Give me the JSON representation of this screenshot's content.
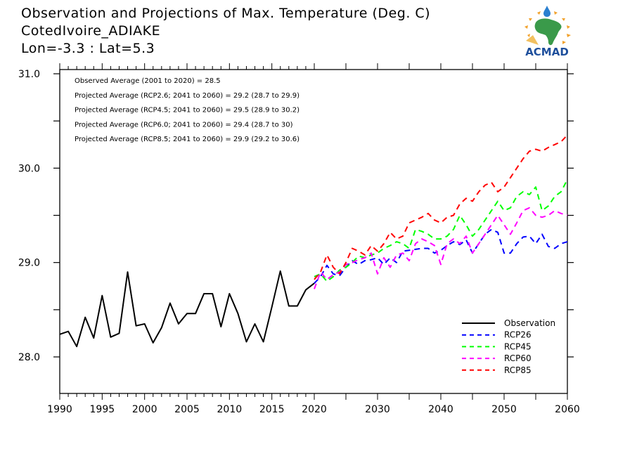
{
  "header": {
    "title": "Observation and Projections of Max. Temperature (Deg. C)",
    "station": "CotedIvoire_ADIAKE",
    "coords": "Lon=-3.3 : Lat=5.3"
  },
  "logo": {
    "text": "ACMAD",
    "colors": {
      "africa": "#3a9a4a",
      "text": "#1e4f9c",
      "sun": "#f2a22c",
      "drop": "#2a7fd0"
    }
  },
  "chart_data": {
    "type": "line",
    "title": "Observation and Projections of Max. Temperature (Deg. C)",
    "xlabel": "",
    "ylabel": "",
    "ylim": [
      27.6,
      31.05
    ],
    "xlim": [
      1990,
      2060
    ],
    "x_scale_note": "piecewise: 1990-2020 and 2020-2060 segments drawn at different widths",
    "grid": false,
    "yticks": [
      28.0,
      29.0,
      30.0,
      31.0
    ],
    "ytick_labels": [
      "28.0",
      "29.0",
      "30.0",
      "31.0"
    ],
    "xticks": [
      1990,
      1995,
      2000,
      2005,
      2010,
      2015,
      2020,
      2030,
      2040,
      2050,
      2060
    ],
    "xtick_labels": [
      "1990",
      "1995",
      "2000",
      "2005",
      "2010",
      "2015",
      "2020",
      "2030",
      "2040",
      "2050",
      "2060"
    ],
    "legend_position": "bottom-right",
    "annotations": [
      "Observed Average (2001 to 2020) = 28.5",
      "Projected Average (RCP2.6; 2041 to 2060) = 29.2 (28.7 to 29.9)",
      "Projected Average (RCP4.5; 2041 to 2060) = 29.5 (28.9 to 30.2)",
      "Projected Average (RCP6.0; 2041 to 2060) = 29.4 (28.7 to 30)",
      "Projected Average (RCP8.5; 2041 to 2060) = 29.9 (29.2 to 30.6)"
    ],
    "series": [
      {
        "name": "Observation",
        "color": "#000000",
        "dash": false,
        "x": [
          1990,
          1991,
          1992,
          1993,
          1994,
          1995,
          1996,
          1997,
          1998,
          1999,
          2000,
          2001,
          2002,
          2003,
          2004,
          2005,
          2006,
          2007,
          2008,
          2009,
          2010,
          2011,
          2012,
          2013,
          2014,
          2015,
          2016,
          2017,
          2018,
          2019,
          2020
        ],
        "values": [
          28.24,
          28.27,
          28.11,
          28.42,
          28.2,
          28.65,
          28.21,
          28.25,
          28.9,
          28.33,
          28.35,
          28.15,
          28.31,
          28.57,
          28.35,
          28.46,
          28.46,
          28.67,
          28.67,
          28.32,
          28.67,
          28.46,
          28.16,
          28.35,
          28.16,
          28.53,
          28.91,
          28.54,
          28.54,
          28.71,
          28.78
        ]
      },
      {
        "name": "RCP26",
        "color": "#0000ff",
        "dash": true,
        "x": [
          2020,
          2021,
          2022,
          2023,
          2024,
          2025,
          2026,
          2027,
          2028,
          2029,
          2030,
          2031,
          2032,
          2033,
          2034,
          2035,
          2036,
          2037,
          2038,
          2039,
          2040,
          2041,
          2042,
          2043,
          2044,
          2045,
          2046,
          2047,
          2048,
          2049,
          2050,
          2051,
          2052,
          2053,
          2054,
          2055,
          2056,
          2057,
          2058,
          2059,
          2060
        ],
        "values": [
          28.78,
          28.85,
          28.97,
          28.88,
          28.86,
          28.95,
          29.02,
          28.98,
          29.02,
          29.03,
          29.05,
          28.98,
          29.05,
          29.0,
          29.12,
          29.13,
          29.14,
          29.15,
          29.15,
          29.1,
          29.13,
          29.18,
          29.22,
          29.19,
          29.24,
          29.1,
          29.2,
          29.3,
          29.35,
          29.32,
          29.1,
          29.1,
          29.2,
          29.27,
          29.28,
          29.2,
          29.3,
          29.17,
          29.15,
          29.2,
          29.22
        ]
      },
      {
        "name": "RCP45",
        "color": "#00ff00",
        "dash": true,
        "x": [
          2020,
          2021,
          2022,
          2023,
          2024,
          2025,
          2026,
          2027,
          2028,
          2029,
          2030,
          2031,
          2032,
          2033,
          2034,
          2035,
          2036,
          2037,
          2038,
          2039,
          2040,
          2041,
          2042,
          2043,
          2044,
          2045,
          2046,
          2047,
          2048,
          2049,
          2050,
          2051,
          2052,
          2053,
          2054,
          2055,
          2056,
          2057,
          2058,
          2059,
          2060
        ],
        "values": [
          28.85,
          28.88,
          28.8,
          28.85,
          28.92,
          28.95,
          29.0,
          29.07,
          29.05,
          29.08,
          29.1,
          29.15,
          29.18,
          29.22,
          29.2,
          29.15,
          29.35,
          29.33,
          29.3,
          29.25,
          29.25,
          29.28,
          29.35,
          29.5,
          29.4,
          29.28,
          29.35,
          29.45,
          29.55,
          29.65,
          29.55,
          29.58,
          29.7,
          29.75,
          29.72,
          29.8,
          29.55,
          29.6,
          29.7,
          29.75,
          29.88
        ]
      },
      {
        "name": "RCP60",
        "color": "#ff00ff",
        "dash": true,
        "x": [
          2020,
          2021,
          2022,
          2023,
          2024,
          2025,
          2026,
          2027,
          2028,
          2029,
          2030,
          2031,
          2032,
          2033,
          2034,
          2035,
          2036,
          2037,
          2038,
          2039,
          2040,
          2041,
          2042,
          2043,
          2044,
          2045,
          2046,
          2047,
          2048,
          2049,
          2050,
          2051,
          2052,
          2053,
          2054,
          2055,
          2056,
          2057,
          2058,
          2059,
          2060
        ],
        "values": [
          28.72,
          28.9,
          28.82,
          28.87,
          28.9,
          28.98,
          29.0,
          29.03,
          29.05,
          29.1,
          28.88,
          29.05,
          28.95,
          29.08,
          29.1,
          29.02,
          29.2,
          29.25,
          29.22,
          29.18,
          28.98,
          29.2,
          29.25,
          29.2,
          29.28,
          29.1,
          29.2,
          29.3,
          29.4,
          29.5,
          29.4,
          29.3,
          29.42,
          29.55,
          29.58,
          29.5,
          29.48,
          29.5,
          29.55,
          29.52,
          29.5
        ]
      },
      {
        "name": "RCP85",
        "color": "#ff0000",
        "dash": true,
        "x": [
          2020,
          2021,
          2022,
          2023,
          2024,
          2025,
          2026,
          2027,
          2028,
          2029,
          2030,
          2031,
          2032,
          2033,
          2034,
          2035,
          2036,
          2037,
          2038,
          2039,
          2040,
          2041,
          2042,
          2043,
          2044,
          2045,
          2046,
          2047,
          2048,
          2049,
          2050,
          2051,
          2052,
          2053,
          2054,
          2055,
          2056,
          2057,
          2058,
          2059,
          2060
        ],
        "values": [
          28.82,
          28.9,
          29.08,
          28.95,
          28.88,
          29.0,
          29.15,
          29.12,
          29.08,
          29.18,
          29.12,
          29.2,
          29.32,
          29.25,
          29.28,
          29.42,
          29.45,
          29.48,
          29.52,
          29.45,
          29.42,
          29.48,
          29.5,
          29.62,
          29.68,
          29.65,
          29.75,
          29.82,
          29.85,
          29.75,
          29.8,
          29.9,
          30.0,
          30.1,
          30.18,
          30.2,
          30.18,
          30.22,
          30.25,
          30.28,
          30.35
        ]
      }
    ]
  }
}
